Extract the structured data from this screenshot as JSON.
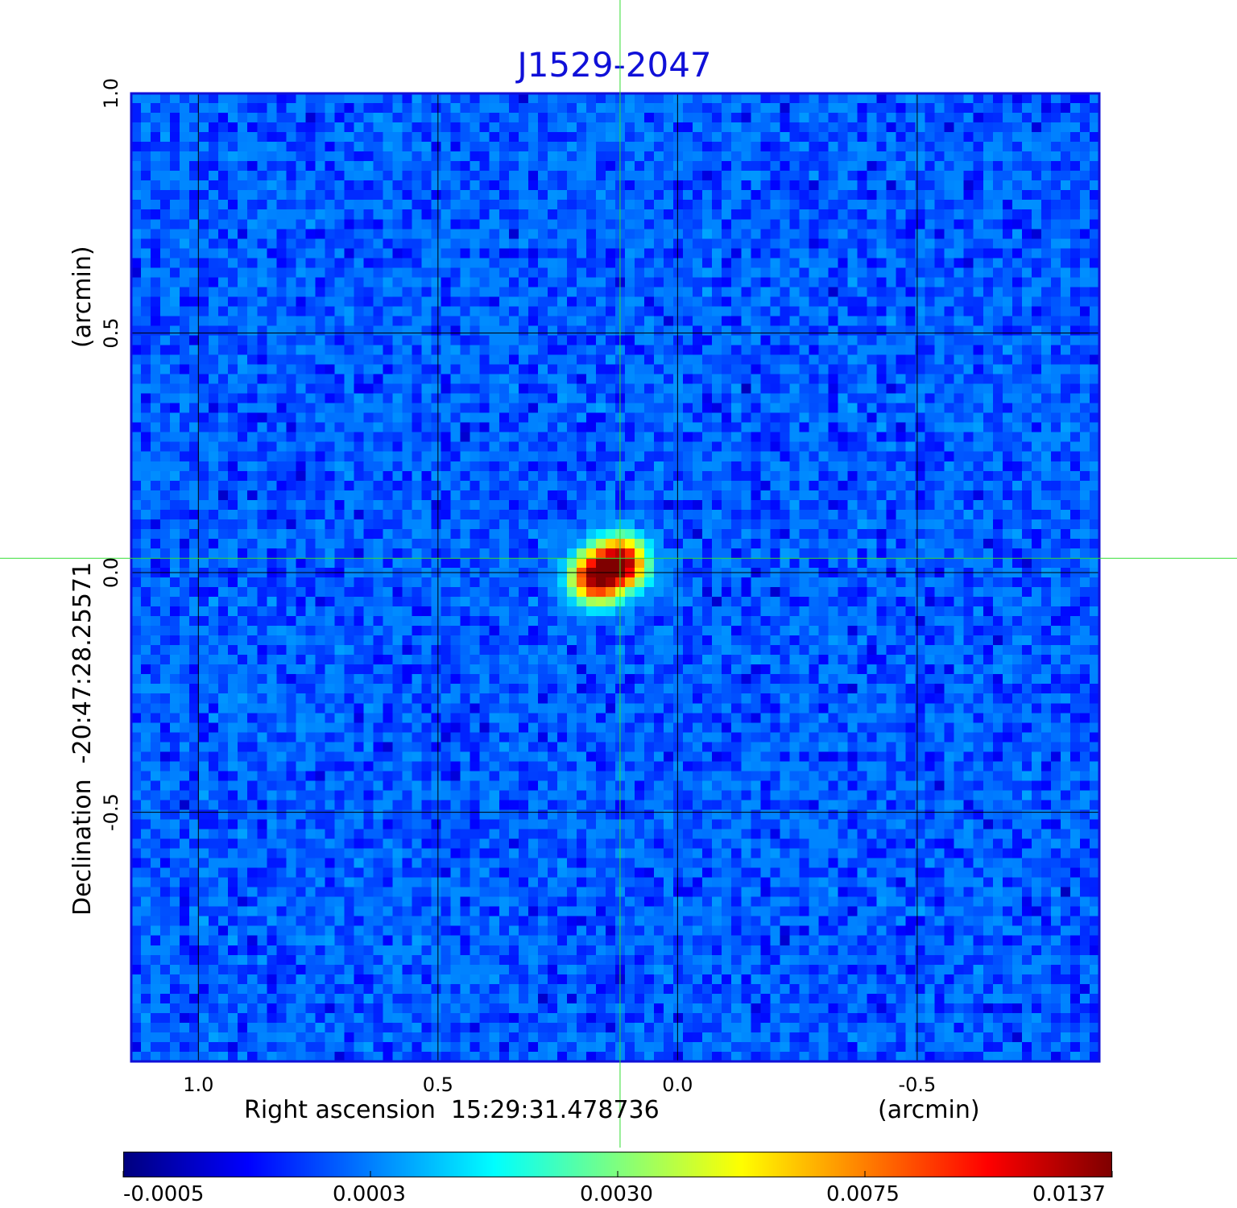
{
  "title": "J1529-2047",
  "chart_data": {
    "type": "heatmap",
    "title": "J1529-2047",
    "xlabel": "Right ascension  15:29:31.478736",
    "xunit": "(arcmin)",
    "ylabel": "Declination  -20:47:28.25571",
    "yunit": "(arcmin)",
    "x_ticks": [
      "1.0",
      "0.5",
      "0.0",
      "-0.5"
    ],
    "x_tick_values": [
      1.0,
      0.5,
      0.0,
      -0.5
    ],
    "y_ticks": [
      "1.0",
      "0.5",
      "0.0",
      "-0.5"
    ],
    "y_tick_values": [
      1.0,
      0.5,
      0.0,
      -0.5
    ],
    "xlim": [
      1.14,
      -0.88
    ],
    "ylim": [
      -1.02,
      1.0
    ],
    "grid": true,
    "crosshair": {
      "x": 0.12,
      "y": 0.03,
      "color": "#33dd33"
    },
    "colormap": "jet",
    "colorbar": {
      "position": "bottom",
      "tick_labels": [
        "-0.0005",
        "0.0003",
        "0.0030",
        "0.0075",
        "0.0137"
      ],
      "min": -0.0005,
      "max": 0.0137
    },
    "background_level": 0.0002,
    "sources": [
      {
        "x": 0.12,
        "y": 0.02,
        "peak": 0.0137
      },
      {
        "x": 0.17,
        "y": -0.01,
        "peak": 0.0125
      }
    ]
  }
}
